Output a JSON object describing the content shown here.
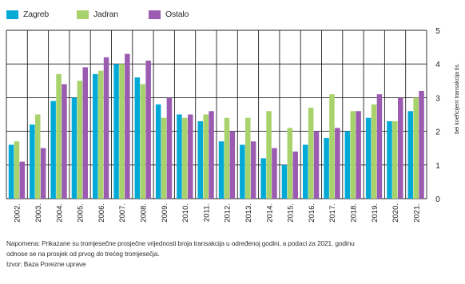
{
  "legend": {
    "items": [
      {
        "label": "Zagreb",
        "color": "#00a9d6"
      },
      {
        "label": "Jadran",
        "color": "#a8d26b"
      },
      {
        "label": "Ostalo",
        "color": "#9a5bb1"
      }
    ]
  },
  "note": {
    "line1": "Napomena: Prikazane su tromjesečne prosječne vrijednosti broja transakcija u određenoj godini, a podaci za 2021. godinu",
    "line2": "odnose se na prosjek od prvog do trećeg tromjesečja.",
    "source": "Izvor: Baza Porezne uprave"
  },
  "chart_data": {
    "type": "bar",
    "categories": [
      "2002.",
      "2003.",
      "2004.",
      "2005.",
      "2006.",
      "2007.",
      "2008.",
      "2009.",
      "2010.",
      "2011.",
      "2012.",
      "2013.",
      "2014.",
      "2015.",
      "2016.",
      "2017.",
      "2018.",
      "2019.",
      "2020.",
      "2021."
    ],
    "series": [
      {
        "name": "Zagreb",
        "color": "#00a9d6",
        "values": [
          1.6,
          2.2,
          2.9,
          3.0,
          3.7,
          4.0,
          3.6,
          2.8,
          2.5,
          2.3,
          1.7,
          1.6,
          1.2,
          1.0,
          1.6,
          1.8,
          2.0,
          2.4,
          2.3,
          2.6
        ]
      },
      {
        "name": "Jadran",
        "color": "#a8d26b",
        "values": [
          1.7,
          2.5,
          3.7,
          3.5,
          3.8,
          4.0,
          3.4,
          2.4,
          2.4,
          2.5,
          2.4,
          2.4,
          2.6,
          2.1,
          2.7,
          3.1,
          2.6,
          2.8,
          2.3,
          3.0
        ]
      },
      {
        "name": "Ostalo",
        "color": "#9a5bb1",
        "values": [
          1.1,
          1.5,
          3.4,
          3.9,
          4.2,
          4.3,
          4.1,
          3.0,
          2.5,
          2.6,
          2.0,
          1.7,
          1.5,
          1.4,
          2.0,
          2.1,
          2.6,
          3.1,
          3.0,
          3.2
        ]
      }
    ],
    "ylabel": "bei koeficijent transakcija tis.",
    "ylim": [
      0,
      5
    ],
    "yticks": [
      "0",
      "1",
      "2",
      "3",
      "4",
      "5"
    ],
    "grid": true,
    "legend_position": "top-left"
  }
}
